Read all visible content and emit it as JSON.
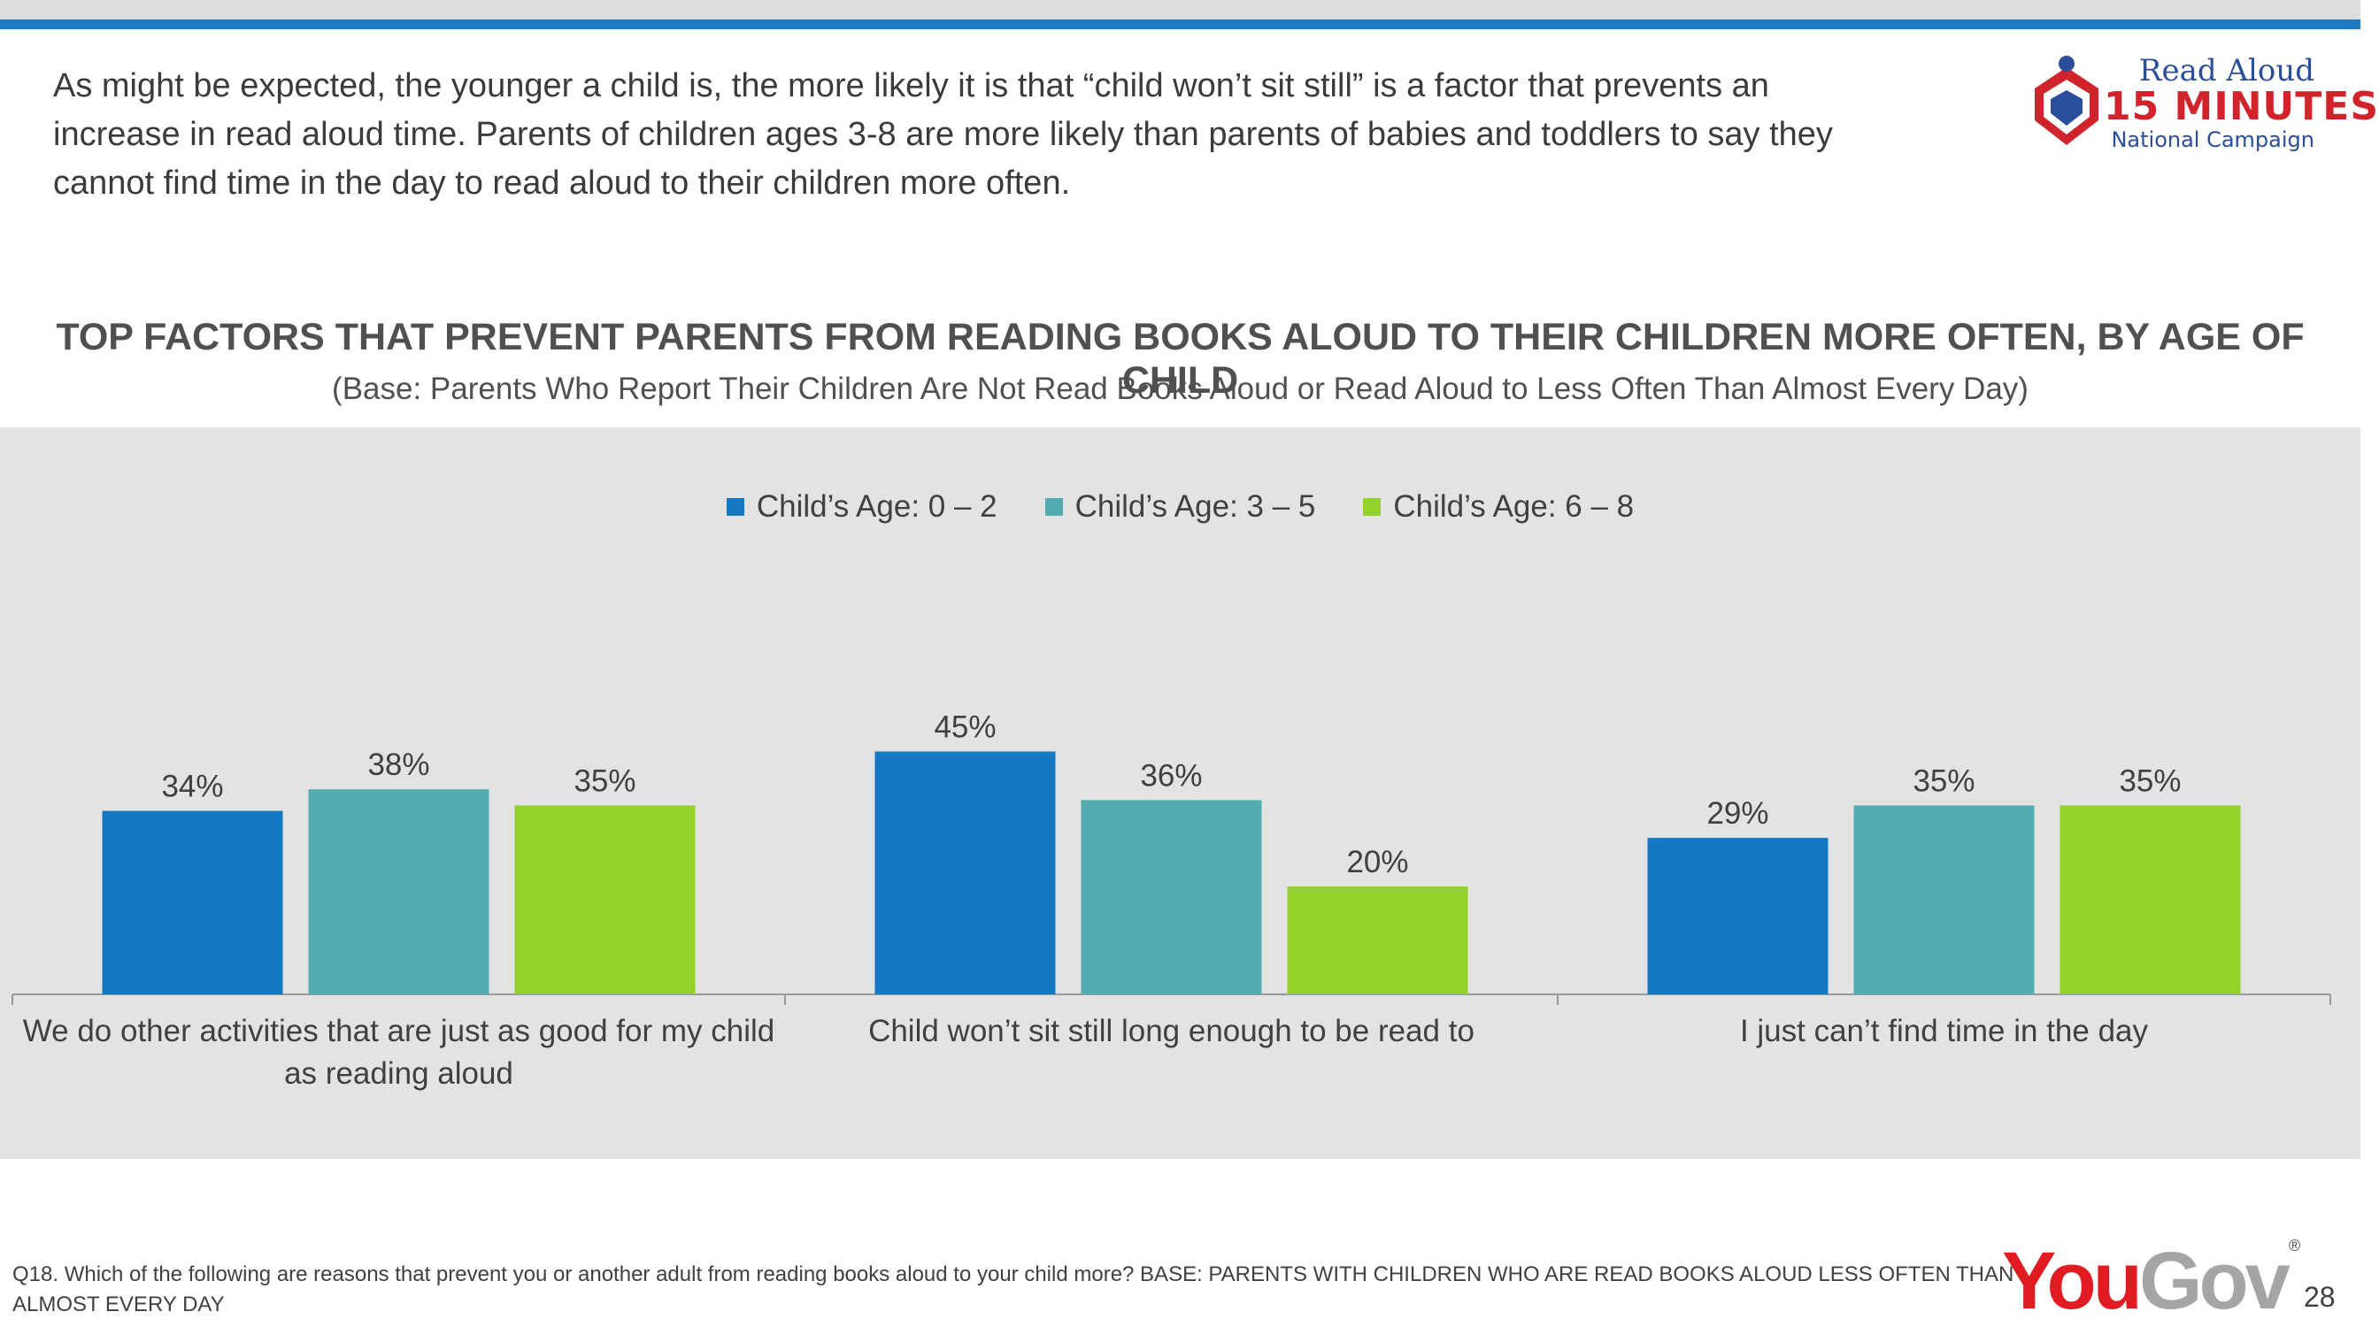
{
  "intro": "As might be expected, the younger a child is, the more likely it is that “child won’t sit still” is a factor that prevents an increase in read aloud time. Parents of children ages 3-8 are more likely than parents of babies and toddlers to say they cannot find time in the day to read aloud to their children more often.",
  "logo": {
    "line1": "Read Aloud",
    "line2": "15 MINUTES",
    "line3": "National Campaign"
  },
  "chart_data": {
    "type": "bar",
    "title": "TOP FACTORS THAT PREVENT PARENTS FROM READING BOOKS ALOUD TO THEIR CHILDREN MORE OFTEN, BY AGE OF CHILD",
    "subtitle": "(Base: Parents Who Report Their Children Are Not Read Books Aloud or Read Aloud to Less Often Than Almost Every Day)",
    "categories": [
      [
        "We do other activities that are just as good for my child",
        "as reading aloud"
      ],
      [
        "Child won’t sit still long enough to be read to"
      ],
      [
        "I just can’t find time in the day"
      ]
    ],
    "series": [
      {
        "name": "Child’s Age: 0 – 2",
        "color": "#1479c4",
        "values": [
          34,
          45,
          29
        ],
        "labels": [
          "34%",
          "45%",
          "29%"
        ]
      },
      {
        "name": "Child’s Age: 3 – 5",
        "color": "#53adb0",
        "values": [
          38,
          36,
          35
        ],
        "labels": [
          "38%",
          "36%",
          "35%"
        ]
      },
      {
        "name": "Child’s Age: 6 – 8",
        "color": "#94d12a",
        "values": [
          35,
          20,
          35
        ],
        "labels": [
          "35%",
          "20%",
          "35%"
        ]
      }
    ],
    "ylim": [
      0,
      60
    ],
    "legend": "top-center",
    "grid": false,
    "xlabel": "",
    "ylabel": ""
  },
  "footer": "Q18. Which of the following are reasons that prevent you or another adult from reading books aloud to your child more? BASE: PARENTS WITH CHILDREN WHO ARE READ BOOKS ALOUD LESS OFTEN THAN ALMOST EVERY DAY",
  "yougov": {
    "you": "You",
    "gov": "Gov",
    "reg": "®"
  },
  "page_number": "28"
}
